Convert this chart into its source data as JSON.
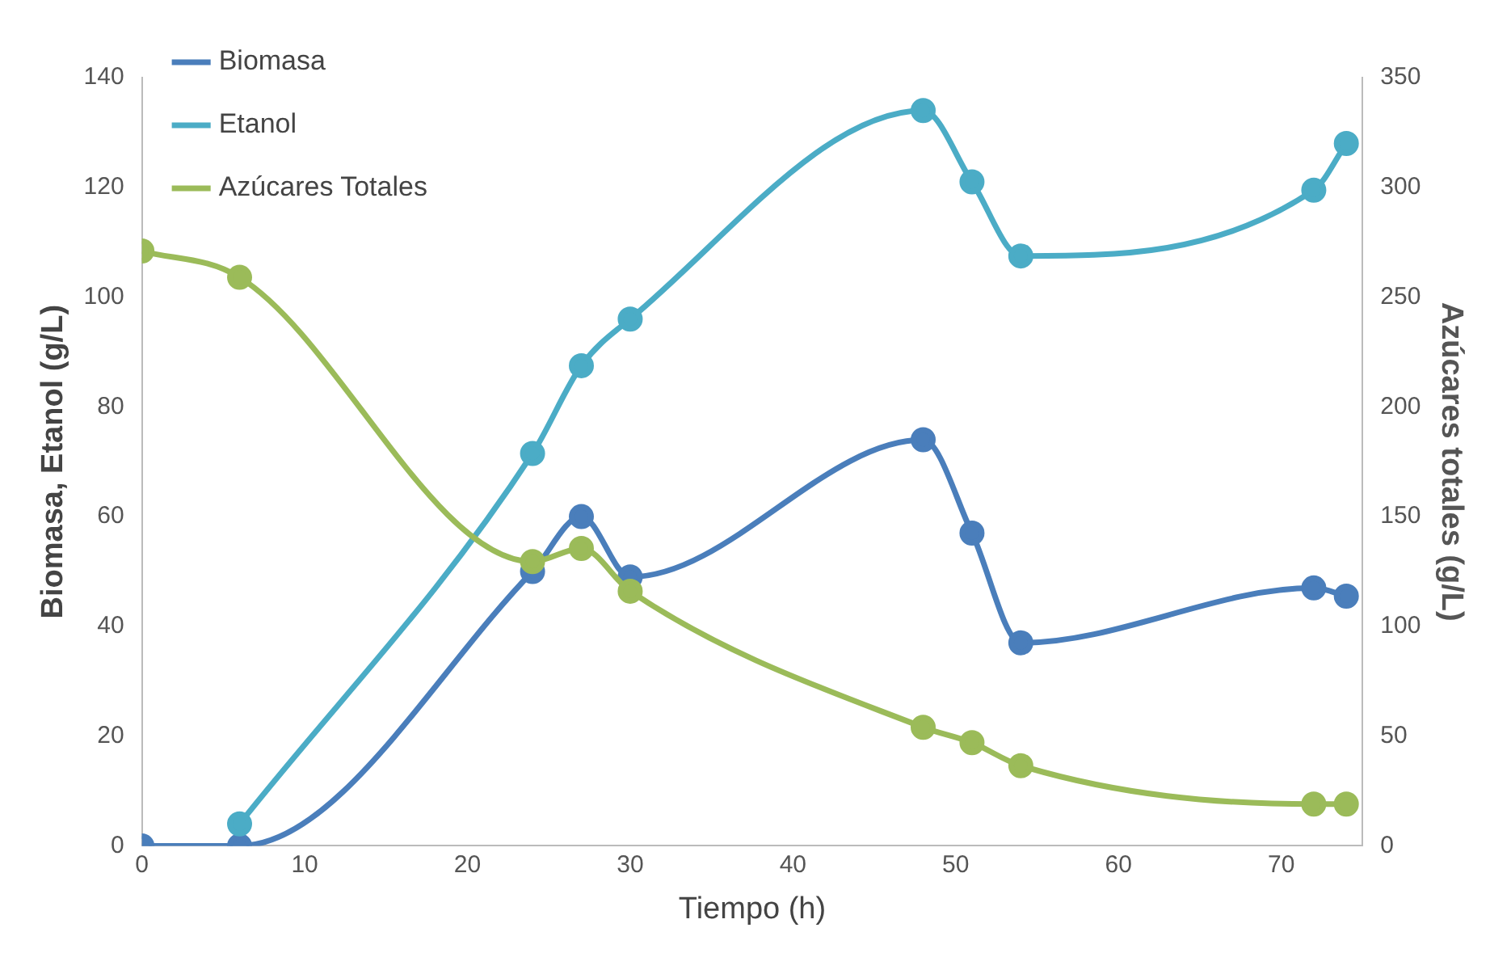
{
  "chart_data": {
    "type": "line",
    "xlabel": "Tiempo (h)",
    "ylabel": "Biomasa, Etanol (g/L)",
    "y2label": "Azúcares totales (g/L)",
    "xlim": [
      0,
      75
    ],
    "xticks": [
      0,
      10,
      20,
      30,
      40,
      50,
      60,
      70
    ],
    "ylim": [
      0,
      140
    ],
    "yticks": [
      0,
      20,
      40,
      60,
      80,
      100,
      120,
      140
    ],
    "y2lim": [
      0,
      350
    ],
    "y2ticks": [
      0,
      50,
      100,
      150,
      200,
      250,
      300,
      350
    ],
    "grid": false,
    "legend": "top left",
    "marker": "circle",
    "line_style": "solid",
    "series": [
      {
        "name": "Biomasa",
        "color": "#4a7ebb",
        "x": [
          0,
          6,
          24,
          27,
          30,
          48,
          51,
          54,
          72,
          74
        ],
        "values": [
          0,
          0,
          50,
          60,
          49,
          74,
          57,
          37,
          47,
          45.5
        ]
      },
      {
        "name": "Etanol",
        "color": "#4bacc6",
        "x": [
          6,
          24,
          27,
          30,
          48,
          51,
          54,
          72,
          74
        ],
        "values": [
          4,
          71.5,
          87.5,
          96,
          134,
          121,
          107.5,
          119.5,
          128
        ]
      },
      {
        "name": "Azúcares Totales",
        "color": "#9bbb59",
        "axis": "y2",
        "x": [
          0,
          6,
          24,
          27,
          30,
          48,
          51,
          54,
          72,
          74
        ],
        "values": [
          271,
          259,
          129.5,
          135.5,
          116,
          54,
          47,
          36.5,
          19,
          19
        ]
      }
    ]
  }
}
